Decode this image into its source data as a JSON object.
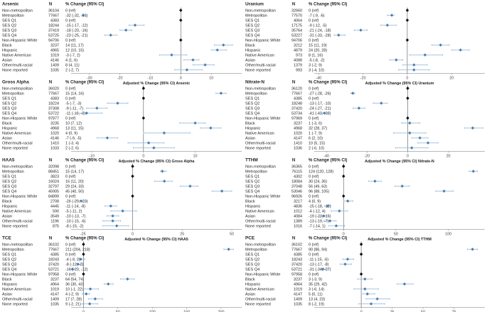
{
  "header": {
    "n": "N",
    "pct": "% Change (95% CI)"
  },
  "xlabel_prefix": "Adjusted % Change (95% CI)",
  "groups": [
    "Non-metropolitan",
    "Metropolitan",
    "SES Q1",
    "SES Q2",
    "SES Q3",
    "SES Q4",
    "Non-Hispanic White",
    "Black",
    "Hispanic",
    "Native American",
    "Asian",
    "Other/multi-racial",
    "None reported"
  ],
  "colors": {
    "ref": "#111111",
    "point": "#4a7db0",
    "ci": "#8fb3d4",
    "zero_line": "#555555"
  },
  "chart_data": [
    {
      "type": "forest",
      "title": "Arsenic",
      "xlabel": "Adjusted % Change (95% CI) Arsenic",
      "xlim": [
        -36,
        20
      ],
      "ticks": [
        -30,
        -20,
        -10,
        0,
        10
      ],
      "n": [
        "36104",
        "77667",
        "4383",
        "18244",
        "37419",
        "53725",
        "94706",
        "3237",
        "4965",
        "1019",
        "4146",
        "1409",
        "1035"
      ],
      "labels": [
        "0 (ref)",
        "-32 (-32, -31)",
        "0 (ref)",
        "-15 (-17, -12)",
        "-18 (-20, -16)",
        "-23 (-25, -21)",
        "0 (ref)",
        "14 (11, 17)",
        "12 (10, 15)",
        "-3 (-7, 2)",
        "4 (1, 6)",
        "8 (4, 11)",
        "2 (-2, 7)"
      ],
      "est": [
        0,
        -32,
        0,
        -15,
        -18,
        -23,
        0,
        14,
        12,
        -3,
        4,
        8,
        2
      ],
      "lo": [
        0,
        -32,
        0,
        -17,
        -20,
        -25,
        0,
        11,
        10,
        -7,
        1,
        4,
        -2
      ],
      "hi": [
        0,
        -31,
        0,
        -12,
        -16,
        -21,
        0,
        17,
        15,
        2,
        6,
        11,
        7
      ]
    },
    {
      "type": "forest",
      "title": "Uranium",
      "xlabel": "Adjusted % Change (95% CI) Uranium",
      "xlim": [
        -42,
        35
      ],
      "ticks": [
        -40,
        -20,
        0,
        20
      ],
      "n": [
        "32660",
        "77570",
        "4064",
        "17175",
        "35764",
        "53227",
        "94706",
        "3212",
        "4879",
        "973",
        "4088",
        "1379",
        "993"
      ],
      "labels": [
        "0 (ref)",
        "-7 (-9, -6)",
        "0 (ref)",
        "-9 (-12, -5)",
        "-21 (-24, -18)",
        "-31 (-33, -28)",
        "0 (ref)",
        "15 (11, 19)",
        "24 (20, 28)",
        "8 (1, 16)",
        "-5 (-8, -2)",
        "3 (-2, 9)",
        "3 (-4, 10)"
      ],
      "est": [
        0,
        -7,
        0,
        -9,
        -21,
        -31,
        0,
        15,
        24,
        8,
        -5,
        3,
        3
      ],
      "lo": [
        0,
        -9,
        0,
        -12,
        -24,
        -33,
        0,
        11,
        20,
        1,
        -8,
        -2,
        -4
      ],
      "hi": [
        0,
        -6,
        0,
        -5,
        -18,
        -28,
        0,
        19,
        28,
        16,
        -2,
        9,
        10
      ]
    },
    {
      "type": "forest",
      "title": "Gross Alpha",
      "xlabel": "Adjusted % Change (95% CI) Gross Alpha",
      "xlim": [
        -14,
        19
      ],
      "ticks": [
        -10,
        0,
        10
      ],
      "n": [
        "36020",
        "77667",
        "4383",
        "18224",
        "37308",
        "53722",
        "97877",
        "3235",
        "4968",
        "1020",
        "4146",
        "1410",
        "1033"
      ],
      "labels": [
        "0 (ref)",
        "15 (14, 16)",
        "0 (ref)",
        "-5 (-7, -3)",
        "-9 (-11, -7)",
        "-11 (-13, -8)",
        "0 (ref)",
        "10 (7, 12)",
        "13 (11, 15)",
        "4 (0, 9)",
        "-7 (-9, -5)",
        "1 (-3, 4)",
        "2 (-2, 6)"
      ],
      "est": [
        0,
        15,
        0,
        -5,
        -9,
        -11,
        0,
        10,
        13,
        4,
        -7,
        1,
        2
      ],
      "lo": [
        0,
        14,
        0,
        -7,
        -11,
        -13,
        0,
        7,
        11,
        0,
        -9,
        -3,
        -2
      ],
      "hi": [
        0,
        16,
        0,
        -3,
        -7,
        -8,
        0,
        12,
        15,
        9,
        -5,
        4,
        6
      ]
    },
    {
      "type": "forest",
      "title": "Nitrate-N",
      "xlabel": "Adjusted % Change (95% CI) Nitrate-N",
      "xlim": [
        -46,
        38
      ],
      "ticks": [
        -40,
        -20,
        0,
        20
      ],
      "n": [
        "36120",
        "77667",
        "4385",
        "18248",
        "37420",
        "53734",
        "97969",
        "3237",
        "4968",
        "1020",
        "4147",
        "1410",
        "1036"
      ],
      "labels": [
        "0 (ref)",
        "-27 (-28, -26)",
        "0 (ref)",
        "-13 (-17, -10)",
        "-24 (-27, -21)",
        "-41 (-43, -38)",
        "0 (ref)",
        "1 (-3, 6)",
        "32 (28, 37)",
        "1 (-7, 9)",
        "6 (2, 10)",
        "10 (5, 15)",
        "2 (-6, 10)"
      ],
      "est": [
        0,
        -27,
        0,
        -13,
        -24,
        -41,
        0,
        1,
        32,
        1,
        6,
        10,
        2
      ],
      "lo": [
        0,
        -28,
        0,
        -17,
        -27,
        -43,
        0,
        -3,
        28,
        -7,
        2,
        5,
        -6
      ],
      "hi": [
        0,
        -26,
        0,
        -10,
        -21,
        -38,
        0,
        6,
        37,
        9,
        10,
        15,
        10
      ]
    },
    {
      "type": "forest",
      "title": "HAA5",
      "xlabel": "Adjusted % Change (95% CI) HAA5",
      "xlim": [
        -31,
        55
      ],
      "ticks": [
        -25,
        0,
        25,
        50
      ],
      "n": [
        "32098",
        "88451",
        "3823",
        "16024",
        "32797",
        "45905",
        "84899",
        "2708",
        "4445",
        "590",
        "3549",
        "1196",
        "875"
      ],
      "labels": [
        "0 (ref)",
        "15 (14, 17)",
        "0 (ref)",
        "16 (11, 20)",
        "29 (24, 33)",
        "45 (40, 50)",
        "0 (ref)",
        "-26 (-29, -23)",
        "-11 (-14, -8)",
        "-5 (-11, 2)",
        "-10 (-13, -7)",
        "-10 (-15, -6)",
        "-8 (-15, -2)"
      ],
      "est": [
        0,
        15,
        0,
        16,
        29,
        45,
        0,
        -26,
        -11,
        -5,
        -10,
        -10,
        -8
      ],
      "lo": [
        0,
        14,
        0,
        11,
        24,
        40,
        0,
        -29,
        -14,
        -11,
        -13,
        -15,
        -15
      ],
      "hi": [
        0,
        17,
        0,
        20,
        33,
        50,
        0,
        -23,
        -8,
        2,
        -7,
        -6,
        -2
      ]
    },
    {
      "type": "forest",
      "title": "TTHM",
      "xlabel": "Adjusted % Change (95% CI) TTHM",
      "xlim": [
        -28,
        135
      ],
      "ticks": [
        0,
        50,
        100
      ],
      "n": [
        "36365",
        "76115",
        "4302",
        "18084",
        "37048",
        "53046",
        "96926",
        "3217",
        "4836",
        "1012",
        "4084",
        "1389",
        "1016"
      ],
      "labels": [
        "0 (ref)",
        "124 (120, 128)",
        "0 (ref)",
        "30 (24, 36)",
        "56 (49, 63)",
        "96 (88, 105)",
        "0 (ref)",
        "4 (0, 9)",
        "-15 (-18, -12)",
        "-4 (-12, 4)",
        "-19 (-23, -16)",
        "-13 (-19, -7)",
        "-7 (-14, 1)"
      ],
      "est": [
        0,
        124,
        0,
        30,
        56,
        96,
        0,
        4,
        -15,
        -4,
        -19,
        -13,
        -7
      ],
      "lo": [
        0,
        120,
        0,
        24,
        49,
        88,
        0,
        0,
        -18,
        -12,
        -23,
        -19,
        -14
      ],
      "hi": [
        0,
        128,
        0,
        36,
        63,
        105,
        0,
        9,
        -12,
        4,
        -16,
        -7,
        1
      ]
    },
    {
      "type": "forest",
      "title": "TCE",
      "xlabel": "Adjusted % Change (95% CI) TCE",
      "xlim": [
        -18,
        230
      ],
      "ticks": [
        0,
        50,
        100,
        150,
        200
      ],
      "n": [
        "36102",
        "77667",
        "4385",
        "18243",
        "37420",
        "53721",
        "97958",
        "3237",
        "4964",
        "1019",
        "4147",
        "1409",
        "1035"
      ],
      "labels": [
        "0 (ref)",
        "211 (204, 218)",
        "0 (ref)",
        "-4 (-9, 2)",
        "-8 (-12, -2)",
        "-16 (-20, -12)",
        "0 (ref)",
        "64 (54, 74)",
        "36 (30, 43)",
        "10 (-1, 22)",
        "4 (-2, 9)",
        "17 (7, 28)",
        "9 (-2, 21)"
      ],
      "est": [
        0,
        211,
        0,
        -4,
        -8,
        -16,
        0,
        64,
        36,
        10,
        4,
        17,
        9
      ],
      "lo": [
        0,
        204,
        0,
        -9,
        -12,
        -20,
        0,
        54,
        30,
        -1,
        -2,
        7,
        -2
      ],
      "hi": [
        0,
        218,
        0,
        2,
        -2,
        -12,
        0,
        74,
        43,
        22,
        9,
        28,
        21
      ]
    },
    {
      "type": "forest",
      "title": "PCE",
      "xlabel": "Adjusted % Change (95% CI) PCE",
      "xlim": [
        -38,
        100
      ],
      "ticks": [
        0,
        25,
        50,
        75
      ],
      "n": [
        "36102",
        "77667",
        "4385",
        "18243",
        "37420",
        "53721",
        "97958",
        "3237",
        "4964",
        "1019",
        "4147",
        "1409",
        "1035"
      ],
      "labels": [
        "0 (ref)",
        "90 (86, 94)",
        "0 (ref)",
        "-11 (-15, -6)",
        "-13 (-17, -8)",
        "-31 (-34, -27)",
        "0 (ref)",
        "3 (-3, 9)",
        "35 (29, 42)",
        "3 (-6, 14)",
        "5 (0, 11)",
        "13 (4, 23)",
        "8 (-2, 19)"
      ],
      "est": [
        0,
        90,
        0,
        -11,
        -13,
        -31,
        0,
        3,
        35,
        3,
        5,
        13,
        8
      ],
      "lo": [
        0,
        86,
        0,
        -15,
        -17,
        -34,
        0,
        -3,
        29,
        -6,
        0,
        4,
        -2
      ],
      "hi": [
        0,
        94,
        0,
        -6,
        -8,
        -27,
        0,
        9,
        42,
        14,
        11,
        23,
        19
      ]
    }
  ]
}
